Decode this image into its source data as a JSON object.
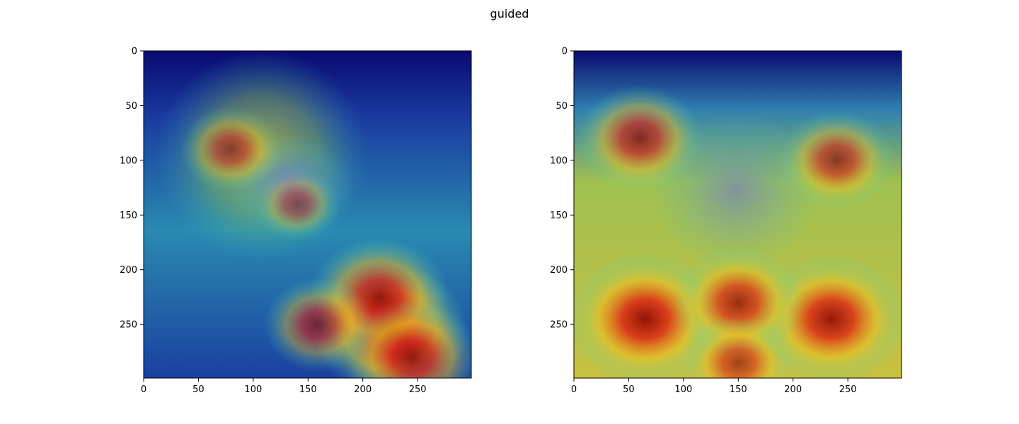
{
  "figure": {
    "suptitle": "guided"
  },
  "chart_data": [
    {
      "type": "heatmap",
      "subtitle": "",
      "xlabel": "",
      "ylabel": "",
      "xlim": [
        0,
        299
      ],
      "ylim": [
        299,
        0
      ],
      "x_ticks": [
        0,
        50,
        100,
        150,
        200,
        250
      ],
      "y_ticks": [
        0,
        50,
        100,
        150,
        200,
        250
      ],
      "colormap": "jet",
      "background": "grayscale ear photograph overlaid with attention heatmap",
      "hotspots": [
        {
          "x": 225,
          "y": 255,
          "intensity": 1.0
        },
        {
          "x": 215,
          "y": 225,
          "intensity": 0.85
        },
        {
          "x": 245,
          "y": 280,
          "intensity": 0.8
        },
        {
          "x": 160,
          "y": 250,
          "intensity": 0.55
        },
        {
          "x": 80,
          "y": 90,
          "intensity": 0.45
        },
        {
          "x": 140,
          "y": 140,
          "intensity": 0.3
        }
      ]
    },
    {
      "type": "heatmap",
      "subtitle": "",
      "xlabel": "",
      "ylabel": "",
      "xlim": [
        0,
        299
      ],
      "ylim": [
        299,
        0
      ],
      "x_ticks": [
        0,
        50,
        100,
        150,
        200,
        250
      ],
      "y_ticks": [
        0,
        50,
        100,
        150,
        200,
        250
      ],
      "colormap": "jet",
      "background": "grayscale ear photograph overlaid with attention heatmap",
      "hotspots": [
        {
          "x": 65,
          "y": 245,
          "intensity": 1.0
        },
        {
          "x": 235,
          "y": 245,
          "intensity": 0.95
        },
        {
          "x": 150,
          "y": 230,
          "intensity": 0.75
        },
        {
          "x": 60,
          "y": 80,
          "intensity": 0.7
        },
        {
          "x": 240,
          "y": 100,
          "intensity": 0.6
        },
        {
          "x": 150,
          "y": 285,
          "intensity": 0.55
        }
      ]
    }
  ]
}
